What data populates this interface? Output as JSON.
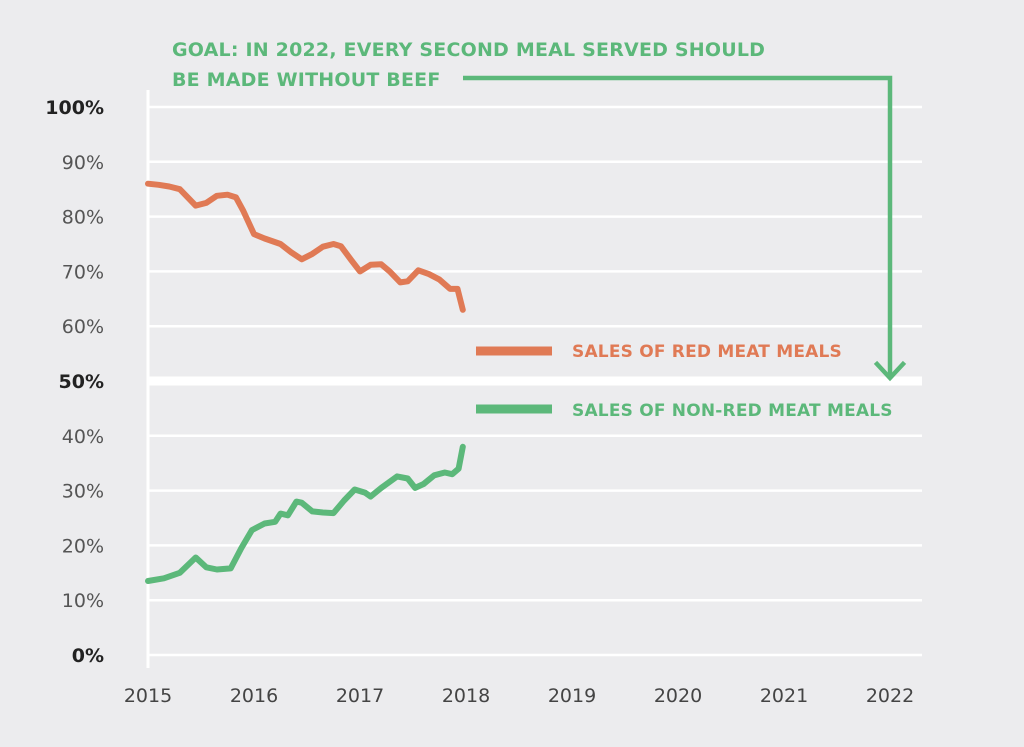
{
  "chart_data": {
    "type": "line",
    "goal_annotation": {
      "line1": "GOAL: IN 2022, EVERY SECOND MEAL SERVED SHOULD",
      "line2": "BE MADE WITHOUT BEEF"
    },
    "x_ticks": [
      "2015",
      "2016",
      "2017",
      "2018",
      "2019",
      "2020",
      "2021",
      "2022"
    ],
    "y_ticks": [
      "0%",
      "10%",
      "20%",
      "30%",
      "40%",
      "50%",
      "60%",
      "70%",
      "80%",
      "90%",
      "100%"
    ],
    "bold_y_ticks": [
      "0%",
      "50%",
      "100%"
    ],
    "xlim": [
      2015,
      2022
    ],
    "ylim": [
      0,
      100
    ],
    "highlight_line": 50,
    "goal_target": {
      "x": 2022,
      "y": 50
    },
    "legend_placement": "right",
    "series": [
      {
        "name": "SALES OF RED MEAT MEALS",
        "color": "#e07a55",
        "points": [
          [
            2015.0,
            86
          ],
          [
            2015.1,
            85.8
          ],
          [
            2015.2,
            85.5
          ],
          [
            2015.3,
            85
          ],
          [
            2015.45,
            82
          ],
          [
            2015.55,
            82.5
          ],
          [
            2015.65,
            83.8
          ],
          [
            2015.75,
            84
          ],
          [
            2015.83,
            83.5
          ],
          [
            2015.9,
            81
          ],
          [
            2016.0,
            76.8
          ],
          [
            2016.1,
            76
          ],
          [
            2016.25,
            75
          ],
          [
            2016.35,
            73.5
          ],
          [
            2016.45,
            72.2
          ],
          [
            2016.55,
            73.2
          ],
          [
            2016.65,
            74.5
          ],
          [
            2016.75,
            75
          ],
          [
            2016.82,
            74.6
          ],
          [
            2016.92,
            72
          ],
          [
            2017.0,
            70
          ],
          [
            2017.1,
            71.2
          ],
          [
            2017.2,
            71.3
          ],
          [
            2017.28,
            70
          ],
          [
            2017.38,
            68
          ],
          [
            2017.45,
            68.2
          ],
          [
            2017.55,
            70.2
          ],
          [
            2017.65,
            69.5
          ],
          [
            2017.75,
            68.5
          ],
          [
            2017.85,
            66.8
          ],
          [
            2017.92,
            66.8
          ],
          [
            2017.97,
            63
          ]
        ]
      },
      {
        "name": "SALES OF NON-RED MEAT MEALS",
        "color": "#5cb87a",
        "points": [
          [
            2015.0,
            13.5
          ],
          [
            2015.15,
            14
          ],
          [
            2015.3,
            15
          ],
          [
            2015.45,
            17.8
          ],
          [
            2015.55,
            16
          ],
          [
            2015.65,
            15.6
          ],
          [
            2015.78,
            15.8
          ],
          [
            2015.88,
            19.5
          ],
          [
            2015.98,
            22.8
          ],
          [
            2016.1,
            24
          ],
          [
            2016.2,
            24.3
          ],
          [
            2016.25,
            25.8
          ],
          [
            2016.32,
            25.5
          ],
          [
            2016.4,
            28
          ],
          [
            2016.45,
            27.8
          ],
          [
            2016.55,
            26.2
          ],
          [
            2016.65,
            26
          ],
          [
            2016.75,
            25.9
          ],
          [
            2016.85,
            28.2
          ],
          [
            2016.95,
            30.2
          ],
          [
            2017.05,
            29.6
          ],
          [
            2017.1,
            28.9
          ],
          [
            2017.2,
            30.5
          ],
          [
            2017.35,
            32.6
          ],
          [
            2017.45,
            32.2
          ],
          [
            2017.52,
            30.5
          ],
          [
            2017.6,
            31.2
          ],
          [
            2017.7,
            32.8
          ],
          [
            2017.8,
            33.3
          ],
          [
            2017.87,
            33
          ],
          [
            2017.93,
            34
          ],
          [
            2017.97,
            38
          ]
        ]
      }
    ]
  },
  "colors": {
    "background": "#ececee",
    "grid": "#ffffff",
    "goal": "#5cb87a",
    "red_meat": "#e07a55",
    "non_red_meat": "#5cb87a"
  }
}
